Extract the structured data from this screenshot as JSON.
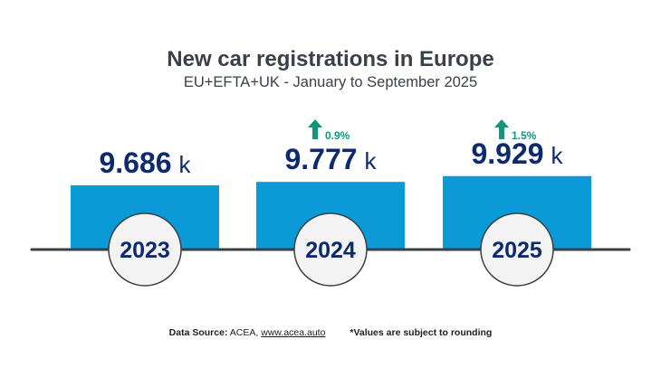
{
  "chart_data": {
    "type": "bar",
    "title": "New car registrations in Europe",
    "subtitle": "EU+EFTA+UK - January to September 2025",
    "categories": [
      "2023",
      "2024",
      "2025"
    ],
    "values": [
      9686,
      9777,
      9929
    ],
    "value_labels": [
      "9.686",
      "9.777",
      "9.929"
    ],
    "unit": "k",
    "changes": [
      null,
      "0.9%",
      "1.5%"
    ],
    "xlabel": "",
    "ylabel": ""
  },
  "footer": {
    "source_label": "Data Source:",
    "source_text": "ACEA, ",
    "source_link": "www.acea.auto",
    "note": "*Values are subject to rounding"
  },
  "colors": {
    "bar": "#0b9ad8",
    "value_text": "#0d2a6e",
    "arrow": "#13957a",
    "axis": "#3a3f45",
    "circle_fill": "#f3f3f3",
    "circle_stroke": "#3a3f45"
  }
}
